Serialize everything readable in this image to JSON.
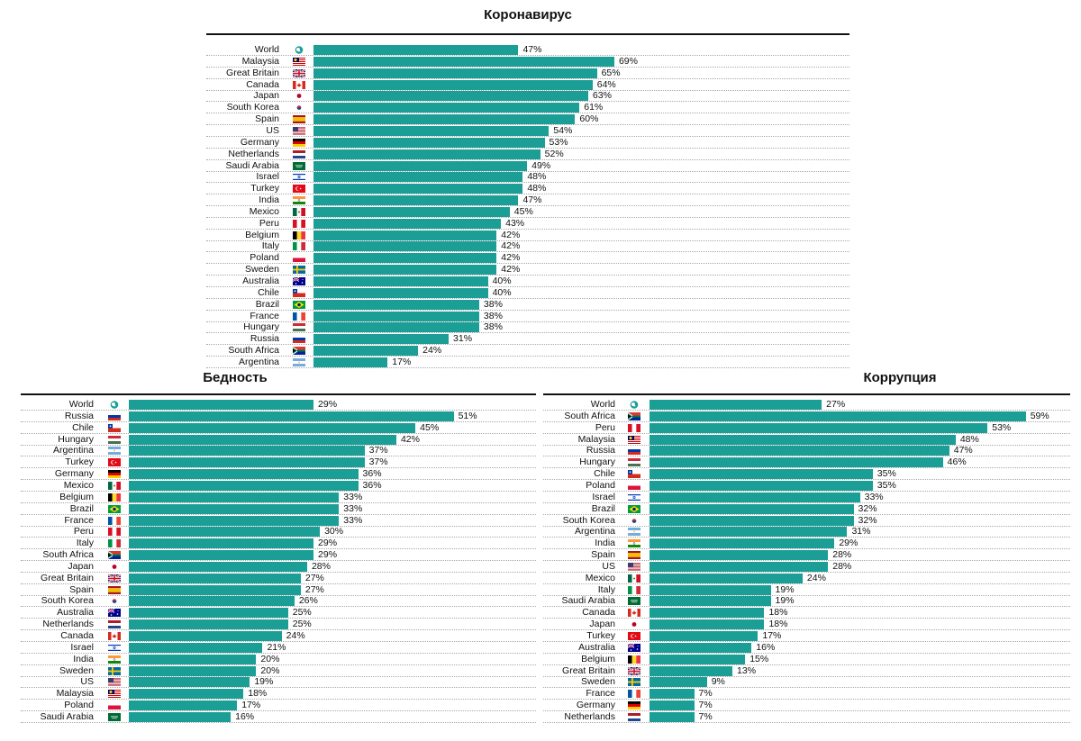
{
  "colors": {
    "bar": "#1a9e96",
    "rule": "#111111",
    "grid": "#a8a8a8"
  },
  "chart_data": [
    {
      "type": "bar",
      "orientation": "horizontal",
      "title": "Коронавирус",
      "unit": "%",
      "xlim": [
        0,
        100
      ],
      "rows": [
        {
          "label": "World",
          "flag": "world-globe",
          "value": 47
        },
        {
          "label": "Malaysia",
          "flag": "malaysia",
          "value": 69
        },
        {
          "label": "Great Britain",
          "flag": "great-britain",
          "value": 65
        },
        {
          "label": "Canada",
          "flag": "canada",
          "value": 64
        },
        {
          "label": "Japan",
          "flag": "japan",
          "value": 63
        },
        {
          "label": "South Korea",
          "flag": "south-korea",
          "value": 61
        },
        {
          "label": "Spain",
          "flag": "spain",
          "value": 60
        },
        {
          "label": "US",
          "flag": "us",
          "value": 54
        },
        {
          "label": "Germany",
          "flag": "germany",
          "value": 53
        },
        {
          "label": "Netherlands",
          "flag": "netherlands",
          "value": 52
        },
        {
          "label": "Saudi Arabia",
          "flag": "saudi-arabia",
          "value": 49
        },
        {
          "label": "Israel",
          "flag": "israel",
          "value": 48
        },
        {
          "label": "Turkey",
          "flag": "turkey",
          "value": 48
        },
        {
          "label": "India",
          "flag": "india",
          "value": 47
        },
        {
          "label": "Mexico",
          "flag": "mexico",
          "value": 45
        },
        {
          "label": "Peru",
          "flag": "peru",
          "value": 43
        },
        {
          "label": "Belgium",
          "flag": "belgium",
          "value": 42
        },
        {
          "label": "Italy",
          "flag": "italy",
          "value": 42
        },
        {
          "label": "Poland",
          "flag": "poland",
          "value": 42
        },
        {
          "label": "Sweden",
          "flag": "sweden",
          "value": 42
        },
        {
          "label": "Australia",
          "flag": "australia",
          "value": 40
        },
        {
          "label": "Chile",
          "flag": "chile",
          "value": 40
        },
        {
          "label": "Brazil",
          "flag": "brazil",
          "value": 38
        },
        {
          "label": "France",
          "flag": "france",
          "value": 38
        },
        {
          "label": "Hungary",
          "flag": "hungary",
          "value": 38
        },
        {
          "label": "Russia",
          "flag": "russia",
          "value": 31
        },
        {
          "label": "South Africa",
          "flag": "south-africa",
          "value": 24
        },
        {
          "label": "Argentina",
          "flag": "argentina",
          "value": 17
        }
      ]
    },
    {
      "type": "bar",
      "orientation": "horizontal",
      "title": "Бедность",
      "unit": "%",
      "xlim": [
        0,
        100
      ],
      "rows": [
        {
          "label": "World",
          "flag": "world-globe",
          "value": 29
        },
        {
          "label": "Russia",
          "flag": "russia",
          "value": 51
        },
        {
          "label": "Chile",
          "flag": "chile",
          "value": 45
        },
        {
          "label": "Hungary",
          "flag": "hungary",
          "value": 42
        },
        {
          "label": "Argentina",
          "flag": "argentina",
          "value": 37
        },
        {
          "label": "Turkey",
          "flag": "turkey",
          "value": 37
        },
        {
          "label": "Germany",
          "flag": "germany",
          "value": 36
        },
        {
          "label": "Mexico",
          "flag": "mexico",
          "value": 36
        },
        {
          "label": "Belgium",
          "flag": "belgium",
          "value": 33
        },
        {
          "label": "Brazil",
          "flag": "brazil",
          "value": 33
        },
        {
          "label": "France",
          "flag": "france",
          "value": 33
        },
        {
          "label": "Peru",
          "flag": "peru",
          "value": 30
        },
        {
          "label": "Italy",
          "flag": "italy",
          "value": 29
        },
        {
          "label": "South Africa",
          "flag": "south-africa",
          "value": 29
        },
        {
          "label": "Japan",
          "flag": "japan",
          "value": 28
        },
        {
          "label": "Great Britain",
          "flag": "great-britain",
          "value": 27
        },
        {
          "label": "Spain",
          "flag": "spain",
          "value": 27
        },
        {
          "label": "South Korea",
          "flag": "south-korea",
          "value": 26
        },
        {
          "label": "Australia",
          "flag": "australia",
          "value": 25
        },
        {
          "label": "Netherlands",
          "flag": "netherlands",
          "value": 25
        },
        {
          "label": "Canada",
          "flag": "canada",
          "value": 24
        },
        {
          "label": "Israel",
          "flag": "israel",
          "value": 21
        },
        {
          "label": "India",
          "flag": "india",
          "value": 20
        },
        {
          "label": "Sweden",
          "flag": "sweden",
          "value": 20
        },
        {
          "label": "US",
          "flag": "us",
          "value": 19
        },
        {
          "label": "Malaysia",
          "flag": "malaysia",
          "value": 18
        },
        {
          "label": "Poland",
          "flag": "poland",
          "value": 17
        },
        {
          "label": "Saudi Arabia",
          "flag": "saudi-arabia",
          "value": 16
        }
      ]
    },
    {
      "type": "bar",
      "orientation": "horizontal",
      "title": "Коррупция",
      "unit": "%",
      "xlim": [
        0,
        100
      ],
      "rows": [
        {
          "label": "World",
          "flag": "world-globe",
          "value": 27
        },
        {
          "label": "South Africa",
          "flag": "south-africa",
          "value": 59
        },
        {
          "label": "Peru",
          "flag": "peru",
          "value": 53
        },
        {
          "label": "Malaysia",
          "flag": "malaysia",
          "value": 48
        },
        {
          "label": "Russia",
          "flag": "russia",
          "value": 47
        },
        {
          "label": "Hungary",
          "flag": "hungary",
          "value": 46
        },
        {
          "label": "Chile",
          "flag": "chile",
          "value": 35
        },
        {
          "label": "Poland",
          "flag": "poland",
          "value": 35
        },
        {
          "label": "Israel",
          "flag": "israel",
          "value": 33
        },
        {
          "label": "Brazil",
          "flag": "brazil",
          "value": 32
        },
        {
          "label": "South Korea",
          "flag": "south-korea",
          "value": 32
        },
        {
          "label": "Argentina",
          "flag": "argentina",
          "value": 31
        },
        {
          "label": "India",
          "flag": "india",
          "value": 29
        },
        {
          "label": "Spain",
          "flag": "spain",
          "value": 28
        },
        {
          "label": "US",
          "flag": "us",
          "value": 28
        },
        {
          "label": "Mexico",
          "flag": "mexico",
          "value": 24
        },
        {
          "label": "Italy",
          "flag": "italy",
          "value": 19
        },
        {
          "label": "Saudi Arabia",
          "flag": "saudi-arabia",
          "value": 19
        },
        {
          "label": "Canada",
          "flag": "canada",
          "value": 18
        },
        {
          "label": "Japan",
          "flag": "japan",
          "value": 18
        },
        {
          "label": "Turkey",
          "flag": "turkey",
          "value": 17
        },
        {
          "label": "Australia",
          "flag": "australia",
          "value": 16
        },
        {
          "label": "Belgium",
          "flag": "belgium",
          "value": 15
        },
        {
          "label": "Great Britain",
          "flag": "great-britain",
          "value": 13
        },
        {
          "label": "Sweden",
          "flag": "sweden",
          "value": 9
        },
        {
          "label": "France",
          "flag": "france",
          "value": 7
        },
        {
          "label": "Germany",
          "flag": "germany",
          "value": 7
        },
        {
          "label": "Netherlands",
          "flag": "netherlands",
          "value": 7
        }
      ]
    }
  ]
}
